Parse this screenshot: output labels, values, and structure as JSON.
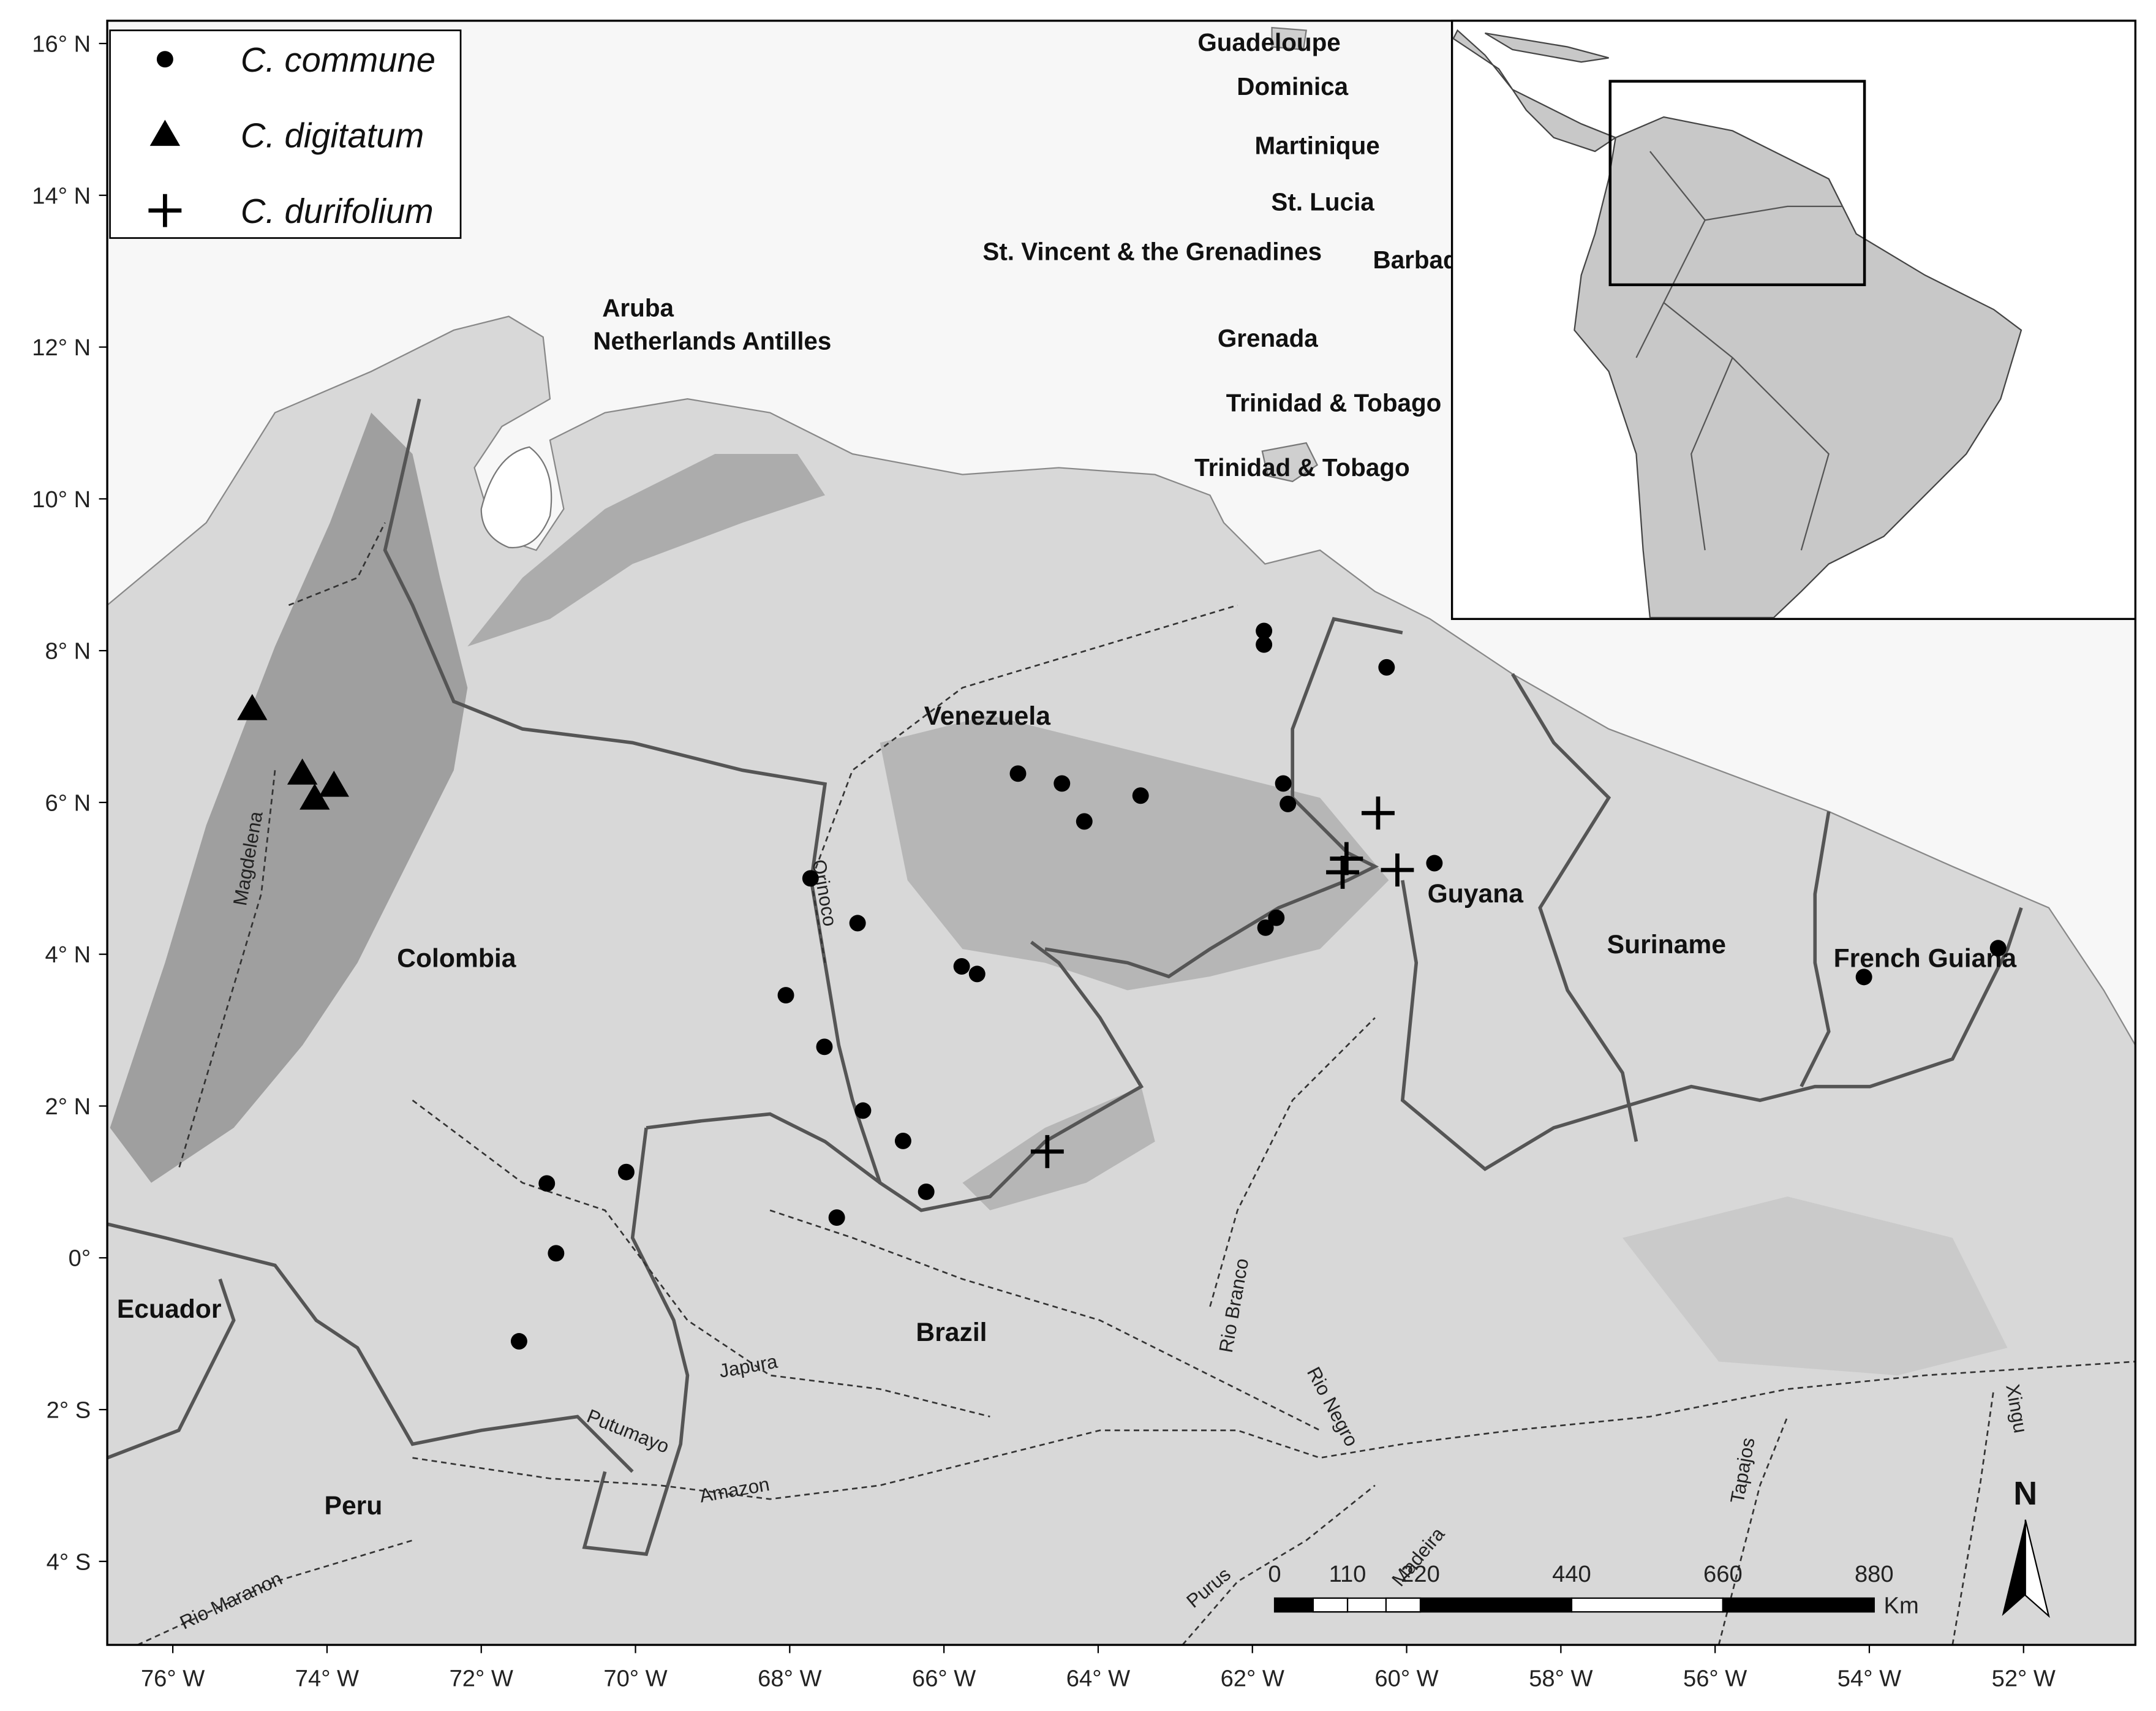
{
  "chart_data": {
    "type": "scatter",
    "xlim": [
      -76.85,
      -50.55
    ],
    "ylim": [
      -5.1,
      16.3
    ],
    "xticks": [
      {
        "value": -76,
        "label": "76° W"
      },
      {
        "value": -74,
        "label": "74° W"
      },
      {
        "value": -72,
        "label": "72° W"
      },
      {
        "value": -70,
        "label": "70° W"
      },
      {
        "value": -68,
        "label": "68° W"
      },
      {
        "value": -66,
        "label": "66° W"
      },
      {
        "value": -64,
        "label": "64° W"
      },
      {
        "value": -62,
        "label": "62° W"
      },
      {
        "value": -60,
        "label": "60° W"
      },
      {
        "value": -58,
        "label": "58° W"
      },
      {
        "value": -56,
        "label": "56° W"
      },
      {
        "value": -54,
        "label": "54° W"
      },
      {
        "value": -52,
        "label": "52° W"
      }
    ],
    "yticks": [
      {
        "value": 16,
        "label": "16° N"
      },
      {
        "value": 14,
        "label": "14° N"
      },
      {
        "value": 12,
        "label": "12° N"
      },
      {
        "value": 10,
        "label": "10° N"
      },
      {
        "value": 8,
        "label": "8° N"
      },
      {
        "value": 6,
        "label": "6° N"
      },
      {
        "value": 4,
        "label": "4° N"
      },
      {
        "value": 2,
        "label": "2° N"
      },
      {
        "value": 0,
        "label": "0°"
      },
      {
        "value": -2,
        "label": "2° S"
      },
      {
        "value": -4,
        "label": "4° S"
      }
    ],
    "legend": "upper left",
    "series": [
      {
        "name": "C. commune",
        "marker": "circle",
        "color": "#000000",
        "x": [
          -61.85,
          -61.85,
          -60.26,
          -65.04,
          -64.47,
          -64.18,
          -63.45,
          -61.6,
          -61.54,
          -59.64,
          -67.73,
          -67.12,
          -61.83,
          -61.69,
          -65.77,
          -65.57,
          -68.05,
          -67.55,
          -67.05,
          -66.53,
          -66.23,
          -67.39,
          -71.15,
          -70.12,
          -71.03,
          -71.51,
          -54.07,
          -52.33
        ],
        "values": [
          8.26,
          8.08,
          7.78,
          6.38,
          6.25,
          5.75,
          6.09,
          6.25,
          5.98,
          5.2,
          5.0,
          4.41,
          4.35,
          4.48,
          3.84,
          3.74,
          3.46,
          2.78,
          1.94,
          1.54,
          0.87,
          0.53,
          0.98,
          1.13,
          0.06,
          -1.1,
          3.7,
          4.08
        ]
      },
      {
        "name": "C. digitatum",
        "marker": "triangle",
        "color": "#000000",
        "x": [
          -74.97,
          -74.32,
          -74.16,
          -73.91
        ],
        "values": [
          7.23,
          6.38,
          6.05,
          6.22
        ]
      },
      {
        "name": "C. durifolium",
        "marker": "plus",
        "color": "#000000",
        "x": [
          -60.37,
          -60.78,
          -60.83,
          -60.12,
          -64.66
        ],
        "values": [
          5.86,
          5.26,
          5.08,
          5.11,
          1.4
        ]
      }
    ]
  },
  "map": {
    "countries": [
      "Colombia",
      "Venezuela",
      "Guyana",
      "Suriname",
      "French Guiana",
      "Brazil",
      "Ecuador",
      "Peru"
    ],
    "islands": [
      "Guadeloupe",
      "Dominica",
      "Martinique",
      "St. Lucia",
      "St. Vincent & the Grenadines",
      "Barbados",
      "Aruba",
      "Netherlands Antilles",
      "Grenada",
      "Trinidad & Tobago",
      "Trinidad & Tobago"
    ],
    "rivers": [
      "Magdelena",
      "Orinoco",
      "Japura",
      "Putumayo",
      "Amazon",
      "Rio Branco",
      "Rio Negro",
      "Purus",
      "Madeira",
      "Tapajos",
      "Xingu",
      "Rio Maranon"
    ],
    "scale_bar": {
      "ticks": [
        0,
        110,
        220,
        440,
        660,
        880
      ],
      "unit": "Km"
    },
    "north_arrow": "N"
  }
}
